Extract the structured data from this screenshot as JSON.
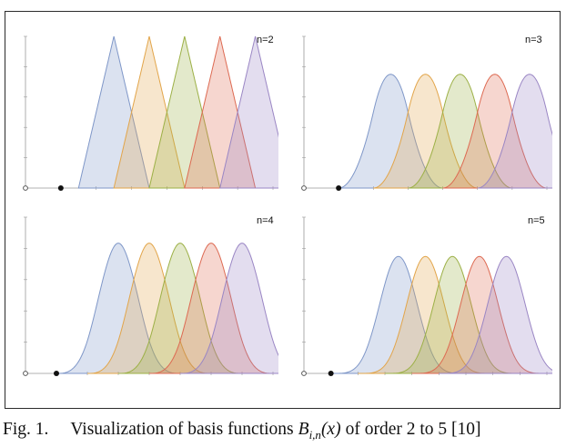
{
  "caption": {
    "fig_number": "Fig. 1.",
    "text": "Visualization of basis functions",
    "math_symbol": "B",
    "math_subscript": "i,n",
    "math_arg": "(x)",
    "text_after": "of order 2 to 5 [10]"
  },
  "colors": {
    "blue": "#7f97c8",
    "orange": "#e2a54a",
    "green": "#9cb046",
    "red": "#dd6a52",
    "purple": "#9a86c4"
  },
  "chart_data": [
    {
      "type": "area",
      "panel_label": "n=2",
      "order": 2,
      "knots": [
        0,
        1,
        2,
        3,
        4,
        5,
        6,
        7
      ],
      "series_count": 5,
      "x_range": [
        0,
        7
      ],
      "y_range": [
        0,
        1
      ],
      "peak": 1.0,
      "marker_x": 1
    },
    {
      "type": "area",
      "panel_label": "n=3",
      "order": 3,
      "knots": [
        0,
        1,
        2,
        3,
        4,
        5,
        6,
        7
      ],
      "series_count": 5,
      "x_range": [
        0,
        7
      ],
      "y_range": [
        0,
        1
      ],
      "peak": 0.75,
      "marker_x": 1
    },
    {
      "type": "area",
      "panel_label": "n=4",
      "order": 4,
      "knots": [
        0,
        1,
        2,
        3,
        4,
        5,
        6,
        7,
        8
      ],
      "series_count": 5,
      "x_range": [
        0,
        8
      ],
      "y_range": [
        0,
        0.8
      ],
      "peak": 0.667,
      "marker_x": 1
    },
    {
      "type": "area",
      "panel_label": "n=5",
      "order": 5,
      "knots": [
        0,
        1,
        2,
        3,
        4,
        5,
        6,
        7,
        8,
        9
      ],
      "series_count": 5,
      "x_range": [
        0,
        9
      ],
      "y_range": [
        0,
        0.8
      ],
      "peak": 0.599,
      "marker_x": 1
    }
  ]
}
